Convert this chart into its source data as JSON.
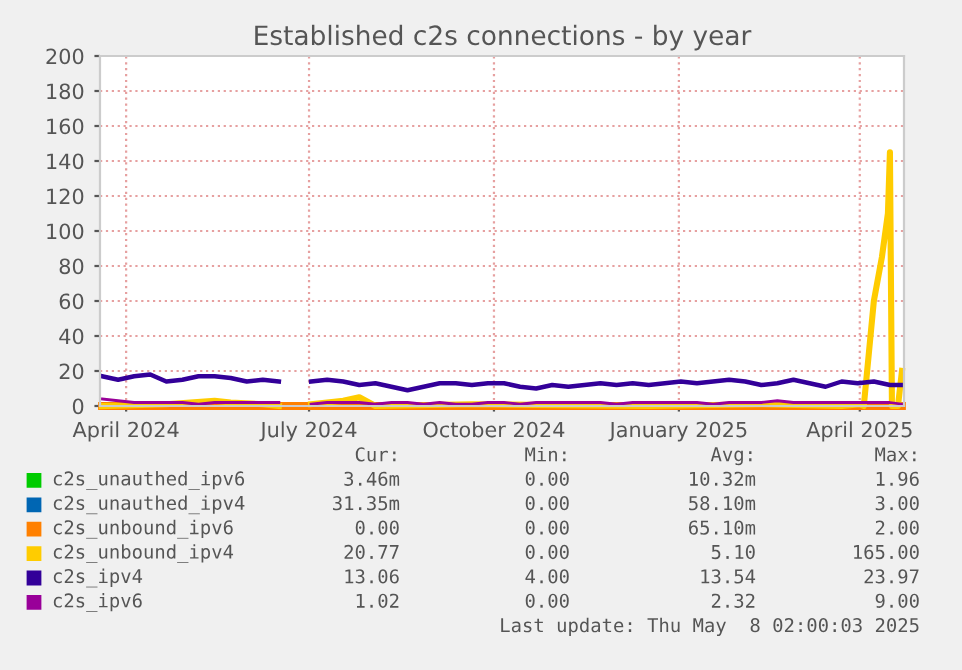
{
  "chart_data": {
    "type": "line",
    "title": "Established c2s connections - by year",
    "x": [
      "2024-03-20",
      "2024-03-28",
      "2024-04-05",
      "2024-04-13",
      "2024-04-21",
      "2024-04-29",
      "2024-05-07",
      "2024-05-15",
      "2024-05-23",
      "2024-05-31",
      "2024-06-08",
      "2024-06-16",
      "2024-06-24",
      "2024-07-02",
      "2024-07-10",
      "2024-07-18",
      "2024-07-26",
      "2024-08-03",
      "2024-08-11",
      "2024-08-19",
      "2024-08-27",
      "2024-09-04",
      "2024-09-12",
      "2024-09-20",
      "2024-09-28",
      "2024-10-06",
      "2024-10-14",
      "2024-10-22",
      "2024-10-30",
      "2024-11-07",
      "2024-11-15",
      "2024-11-23",
      "2024-12-01",
      "2024-12-09",
      "2024-12-17",
      "2024-12-25",
      "2025-01-02",
      "2025-01-10",
      "2025-01-18",
      "2025-01-26",
      "2025-02-03",
      "2025-02-11",
      "2025-02-19",
      "2025-02-27",
      "2025-03-07",
      "2025-03-15",
      "2025-03-23",
      "2025-03-31",
      "2025-04-08",
      "2025-04-16",
      "2025-04-22"
    ],
    "series": [
      {
        "name": "c2s_unauthed_ipv6",
        "color": "#00cc00",
        "values": [
          null,
          null,
          null,
          null,
          null,
          null,
          null,
          null,
          null,
          null,
          null,
          null,
          null,
          null,
          null,
          null,
          null,
          null,
          null,
          null,
          null,
          null,
          null,
          null,
          null,
          null,
          null,
          null,
          null,
          null,
          null,
          null,
          null,
          null,
          null,
          null,
          null,
          null,
          null,
          null,
          null,
          null,
          null,
          null,
          null,
          null,
          null,
          null,
          null,
          null,
          null
        ]
      },
      {
        "name": "c2s_unauthed_ipv4",
        "color": "#0066b3",
        "values": [
          null,
          null,
          null,
          null,
          null,
          null,
          null,
          null,
          null,
          null,
          null,
          null,
          null,
          null,
          null,
          null,
          null,
          null,
          null,
          null,
          null,
          null,
          null,
          null,
          null,
          null,
          null,
          null,
          null,
          null,
          null,
          null,
          null,
          null,
          null,
          null,
          null,
          null,
          null,
          null,
          null,
          null,
          null,
          null,
          null,
          null,
          null,
          null,
          null,
          null,
          null
        ]
      },
      {
        "name": "c2s_unbound_ipv6",
        "color": "#ff8000",
        "x": [
          "2024-03-20",
          "2025-04-22"
        ],
        "values": [
          0,
          0
        ]
      },
      {
        "name": "c2s_unbound_ipv4",
        "color": "#ffcc00",
        "x": [
          "2024-03-20",
          "2024-04-21",
          "2024-05-15",
          "2024-05-23",
          "2024-06-08",
          "2024-06-16",
          "2024-06-24",
          "2024-07-02",
          "2024-07-18",
          "2024-07-26",
          "2024-08-03",
          "2024-09-20",
          "2024-12-17",
          "2025-02-11",
          "2025-03-23",
          "2025-04-01",
          "2025-04-03",
          "2025-04-08",
          "2025-04-12",
          "2025-04-15",
          "2025-04-16",
          "2025-04-17",
          "2025-04-20",
          "2025-04-22"
        ],
        "values": [
          0,
          1,
          3,
          2,
          1,
          0,
          null,
          1,
          3,
          5,
          0,
          1,
          0,
          1,
          0,
          1,
          0,
          60,
          85,
          110,
          145,
          0,
          0,
          20
        ]
      },
      {
        "name": "c2s_ipv4",
        "color": "#330099",
        "values": [
          17,
          15,
          17,
          18,
          14,
          15,
          17,
          17,
          16,
          14,
          15,
          14,
          null,
          14,
          15,
          14,
          12,
          13,
          11,
          9,
          11,
          13,
          13,
          12,
          13,
          13,
          11,
          10,
          12,
          11,
          12,
          13,
          12,
          13,
          12,
          13,
          14,
          13,
          14,
          15,
          14,
          12,
          13,
          15,
          13,
          11,
          14,
          13,
          14,
          12,
          12
        ]
      },
      {
        "name": "c2s_ipv6",
        "color": "#990099",
        "values": [
          4,
          3,
          2,
          2,
          2,
          2,
          1,
          2,
          2,
          2,
          2,
          2,
          null,
          1,
          2,
          2,
          2,
          1,
          2,
          2,
          1,
          2,
          1,
          1,
          2,
          2,
          1,
          2,
          2,
          2,
          2,
          2,
          1,
          2,
          2,
          2,
          2,
          2,
          1,
          2,
          2,
          2,
          3,
          2,
          2,
          2,
          2,
          2,
          2,
          2,
          1
        ]
      }
    ],
    "xlim": [
      "2024-03-19",
      "2025-04-23"
    ],
    "xticks": [
      {
        "value": "2024-04-01",
        "label": "April 2024"
      },
      {
        "value": "2024-07-01",
        "label": "July 2024"
      },
      {
        "value": "2024-10-01",
        "label": "October 2024"
      },
      {
        "value": "2025-01-01",
        "label": "January 2025"
      },
      {
        "value": "2025-04-01",
        "label": "April 2025"
      }
    ],
    "ylim": [
      0,
      200
    ],
    "yticks": [
      0,
      20,
      40,
      60,
      80,
      100,
      120,
      140,
      160,
      180,
      200
    ],
    "grid": true,
    "legend": "bottom",
    "annotations": [
      "Cur:",
      "Min:",
      "Avg:",
      "Max:",
      "3.46m",
      "0.00",
      "10.32m",
      "1.96",
      "31.35m",
      "0.00",
      "58.10m",
      "3.00",
      "0.00",
      "0.00",
      "65.10m",
      "2.00",
      "20.77",
      "0.00",
      "5.10",
      "165.00",
      "13.06",
      "4.00",
      "13.54",
      "23.97",
      "1.02",
      "0.00",
      "2.32",
      "9.00",
      "Last update: Thu May  8 02:00:03 2025"
    ]
  }
}
